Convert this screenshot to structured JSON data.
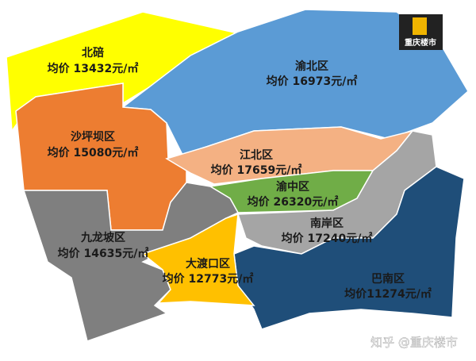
{
  "logo": "重庆楼市",
  "watermark": "知乎 @重庆楼市",
  "regions": [
    {
      "name": "北碚",
      "label": "均价 13432元/㎡"
    },
    {
      "name": "渝北区",
      "label": "均价 16973元/㎡"
    },
    {
      "name": "沙坪坝区",
      "label": "均价 15080元/㎡"
    },
    {
      "name": "江北区",
      "label": "均价 17659元/㎡"
    },
    {
      "name": "渝中区",
      "label": "均价 26320元/㎡"
    },
    {
      "name": "南岸区",
      "label": "均价 17240元/㎡"
    },
    {
      "name": "九龙坡区",
      "label": "均价 14635元/㎡"
    },
    {
      "name": "大渡口区",
      "label": "均价 12773元/㎡"
    },
    {
      "name": "巴南区",
      "label": "均价11274元/㎡"
    }
  ]
}
